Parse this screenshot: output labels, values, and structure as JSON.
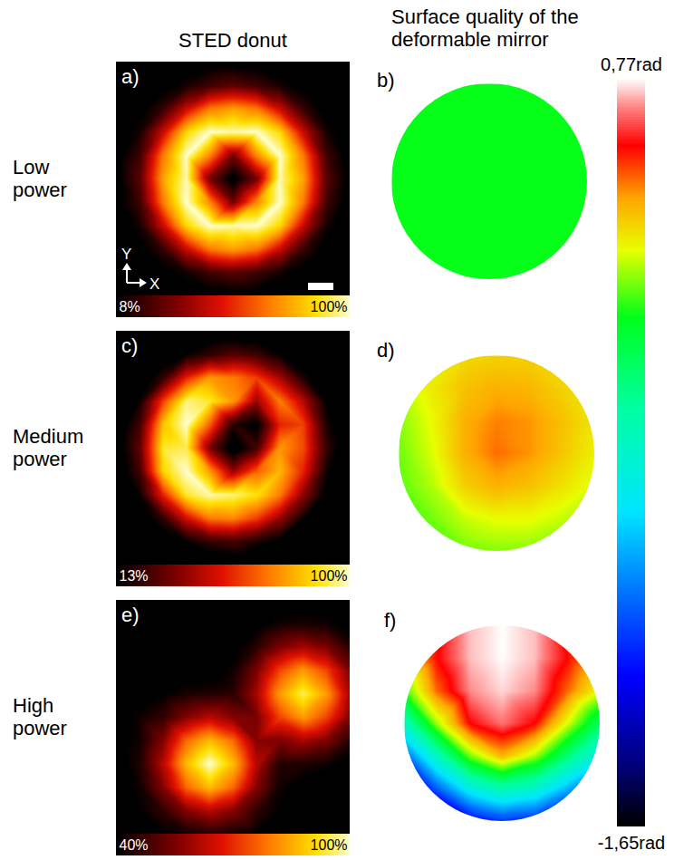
{
  "column_titles": [
    "STED donut",
    "Surface quality of the deformable mirror"
  ],
  "row_labels": [
    "Low power",
    "Medium power",
    "High power"
  ],
  "phase_colorbar": {
    "range": [
      -1.65,
      0.77
    ],
    "ticks": [
      {
        "value": 0.77,
        "label": "0,77rad"
      },
      {
        "value": -1.65,
        "label": "-1,65rad"
      }
    ]
  },
  "chart_data": [
    {
      "type": "heatmap",
      "title": "a)",
      "annotations": [
        "Y",
        "X"
      ],
      "colorbar": {
        "range": [
          8,
          100
        ],
        "ticks": [
          {
            "value": 8,
            "label": "8%"
          },
          {
            "value": 100,
            "label": "100%"
          }
        ]
      },
      "cells": [
        [
          2,
          2,
          2,
          3,
          4,
          5,
          4,
          3,
          2,
          2,
          2
        ],
        [
          2,
          2,
          5,
          12,
          20,
          25,
          20,
          12,
          5,
          2,
          2
        ],
        [
          2,
          5,
          18,
          45,
          68,
          75,
          68,
          45,
          18,
          5,
          2
        ],
        [
          3,
          12,
          45,
          85,
          100,
          98,
          100,
          85,
          45,
          12,
          3
        ],
        [
          4,
          20,
          68,
          100,
          70,
          30,
          70,
          100,
          68,
          20,
          4
        ],
        [
          5,
          25,
          75,
          98,
          30,
          3,
          30,
          98,
          75,
          25,
          5
        ],
        [
          4,
          20,
          68,
          100,
          70,
          30,
          70,
          100,
          68,
          20,
          4
        ],
        [
          3,
          12,
          45,
          85,
          100,
          98,
          100,
          85,
          45,
          12,
          3
        ],
        [
          2,
          5,
          18,
          45,
          68,
          75,
          68,
          45,
          18,
          5,
          2
        ],
        [
          2,
          2,
          5,
          12,
          20,
          25,
          20,
          12,
          5,
          2,
          2
        ],
        [
          2,
          2,
          2,
          3,
          4,
          5,
          4,
          3,
          2,
          2,
          2
        ]
      ]
    },
    {
      "type": "heatmap",
      "title": "b)",
      "cells": [
        [
          null,
          0,
          0,
          0,
          0,
          0,
          null
        ],
        [
          0,
          0,
          0,
          0,
          0,
          0,
          0
        ],
        [
          0,
          0,
          0,
          0,
          0,
          0,
          0
        ],
        [
          0,
          0,
          0,
          0,
          0,
          0,
          0
        ],
        [
          0,
          0,
          0,
          0,
          0,
          0,
          0
        ],
        [
          0,
          0,
          0,
          0,
          0,
          0,
          0
        ],
        [
          null,
          0,
          0,
          0,
          0,
          0,
          null
        ]
      ]
    },
    {
      "type": "heatmap",
      "title": "c)",
      "colorbar": {
        "range": [
          13,
          100
        ],
        "ticks": [
          {
            "value": 13,
            "label": "13%"
          },
          {
            "value": 100,
            "label": "100%"
          }
        ]
      },
      "cells": [
        [
          2,
          2,
          3,
          3,
          4,
          5,
          4,
          3,
          2,
          2,
          2
        ],
        [
          2,
          3,
          6,
          14,
          22,
          28,
          24,
          14,
          6,
          3,
          2
        ],
        [
          3,
          6,
          22,
          55,
          75,
          70,
          60,
          42,
          18,
          5,
          2
        ],
        [
          4,
          15,
          60,
          95,
          90,
          75,
          40,
          70,
          45,
          12,
          3
        ],
        [
          5,
          25,
          82,
          100,
          65,
          20,
          10,
          55,
          60,
          18,
          4
        ],
        [
          6,
          30,
          90,
          92,
          35,
          5,
          25,
          75,
          62,
          22,
          4
        ],
        [
          5,
          25,
          85,
          100,
          75,
          40,
          65,
          80,
          55,
          16,
          3
        ],
        [
          4,
          15,
          55,
          90,
          98,
          95,
          88,
          70,
          38,
          10,
          3
        ],
        [
          3,
          6,
          22,
          50,
          70,
          72,
          60,
          40,
          15,
          4,
          2
        ],
        [
          2,
          3,
          6,
          14,
          22,
          25,
          18,
          10,
          4,
          2,
          2
        ],
        [
          2,
          2,
          3,
          3,
          4,
          4,
          3,
          3,
          2,
          2,
          2
        ]
      ]
    },
    {
      "type": "heatmap",
      "title": "d)",
      "cells": [
        [
          null,
          0.25,
          0.28,
          0.3,
          0.3,
          0.28,
          null
        ],
        [
          0.18,
          0.25,
          0.33,
          0.36,
          0.35,
          0.3,
          0.26
        ],
        [
          0.12,
          0.22,
          0.36,
          0.42,
          0.4,
          0.33,
          0.26
        ],
        [
          0.1,
          0.2,
          0.36,
          0.44,
          0.4,
          0.32,
          0.24
        ],
        [
          0.08,
          0.16,
          0.3,
          0.36,
          0.33,
          0.27,
          0.2
        ],
        [
          0.06,
          0.1,
          0.18,
          0.22,
          0.22,
          0.18,
          0.14
        ],
        [
          null,
          0.06,
          0.1,
          0.12,
          0.12,
          0.1,
          null
        ]
      ]
    },
    {
      "type": "heatmap",
      "title": "e)",
      "colorbar": {
        "range": [
          40,
          100
        ],
        "ticks": [
          {
            "value": 40,
            "label": "40%"
          },
          {
            "value": 100,
            "label": "100%"
          }
        ]
      },
      "cells": [
        [
          33,
          35,
          34,
          36,
          35,
          34,
          36,
          37,
          37,
          36,
          34
        ],
        [
          34,
          35,
          36,
          34,
          35,
          37,
          38,
          42,
          43,
          42,
          38
        ],
        [
          35,
          34,
          36,
          35,
          36,
          38,
          45,
          55,
          60,
          55,
          45
        ],
        [
          35,
          36,
          35,
          37,
          37,
          42,
          55,
          73,
          83,
          73,
          55
        ],
        [
          36,
          37,
          40,
          43,
          44,
          45,
          60,
          83,
          95,
          83,
          60
        ],
        [
          38,
          42,
          46,
          56,
          62,
          56,
          55,
          73,
          83,
          73,
          55
        ],
        [
          38,
          42,
          56,
          77,
          87,
          77,
          56,
          55,
          60,
          55,
          45
        ],
        [
          37,
          44,
          62,
          87,
          100,
          87,
          62,
          44,
          44,
          42,
          38
        ],
        [
          38,
          42,
          56,
          77,
          87,
          77,
          56,
          42,
          37,
          36,
          35
        ],
        [
          36,
          40,
          46,
          56,
          62,
          56,
          46,
          40,
          36,
          35,
          34
        ],
        [
          35,
          37,
          40,
          42,
          44,
          42,
          40,
          37,
          35,
          34,
          36
        ]
      ]
    },
    {
      "type": "heatmap",
      "title": "f)",
      "cells": [
        [
          null,
          0.5,
          0.72,
          0.77,
          0.72,
          0.5,
          null
        ],
        [
          0.25,
          0.55,
          0.72,
          0.77,
          0.72,
          0.55,
          0.35
        ],
        [
          0.05,
          0.45,
          0.68,
          0.74,
          0.68,
          0.45,
          0.2
        ],
        [
          -0.4,
          0.15,
          0.55,
          0.66,
          0.55,
          0.2,
          -0.15
        ],
        [
          -0.95,
          -0.4,
          0.1,
          0.35,
          0.15,
          -0.2,
          -0.55
        ],
        [
          -1.4,
          -0.95,
          -0.55,
          -0.35,
          -0.45,
          -0.75,
          -1.05
        ],
        [
          null,
          -1.55,
          -1.2,
          -1.05,
          -1.1,
          -1.3,
          null
        ]
      ]
    }
  ]
}
